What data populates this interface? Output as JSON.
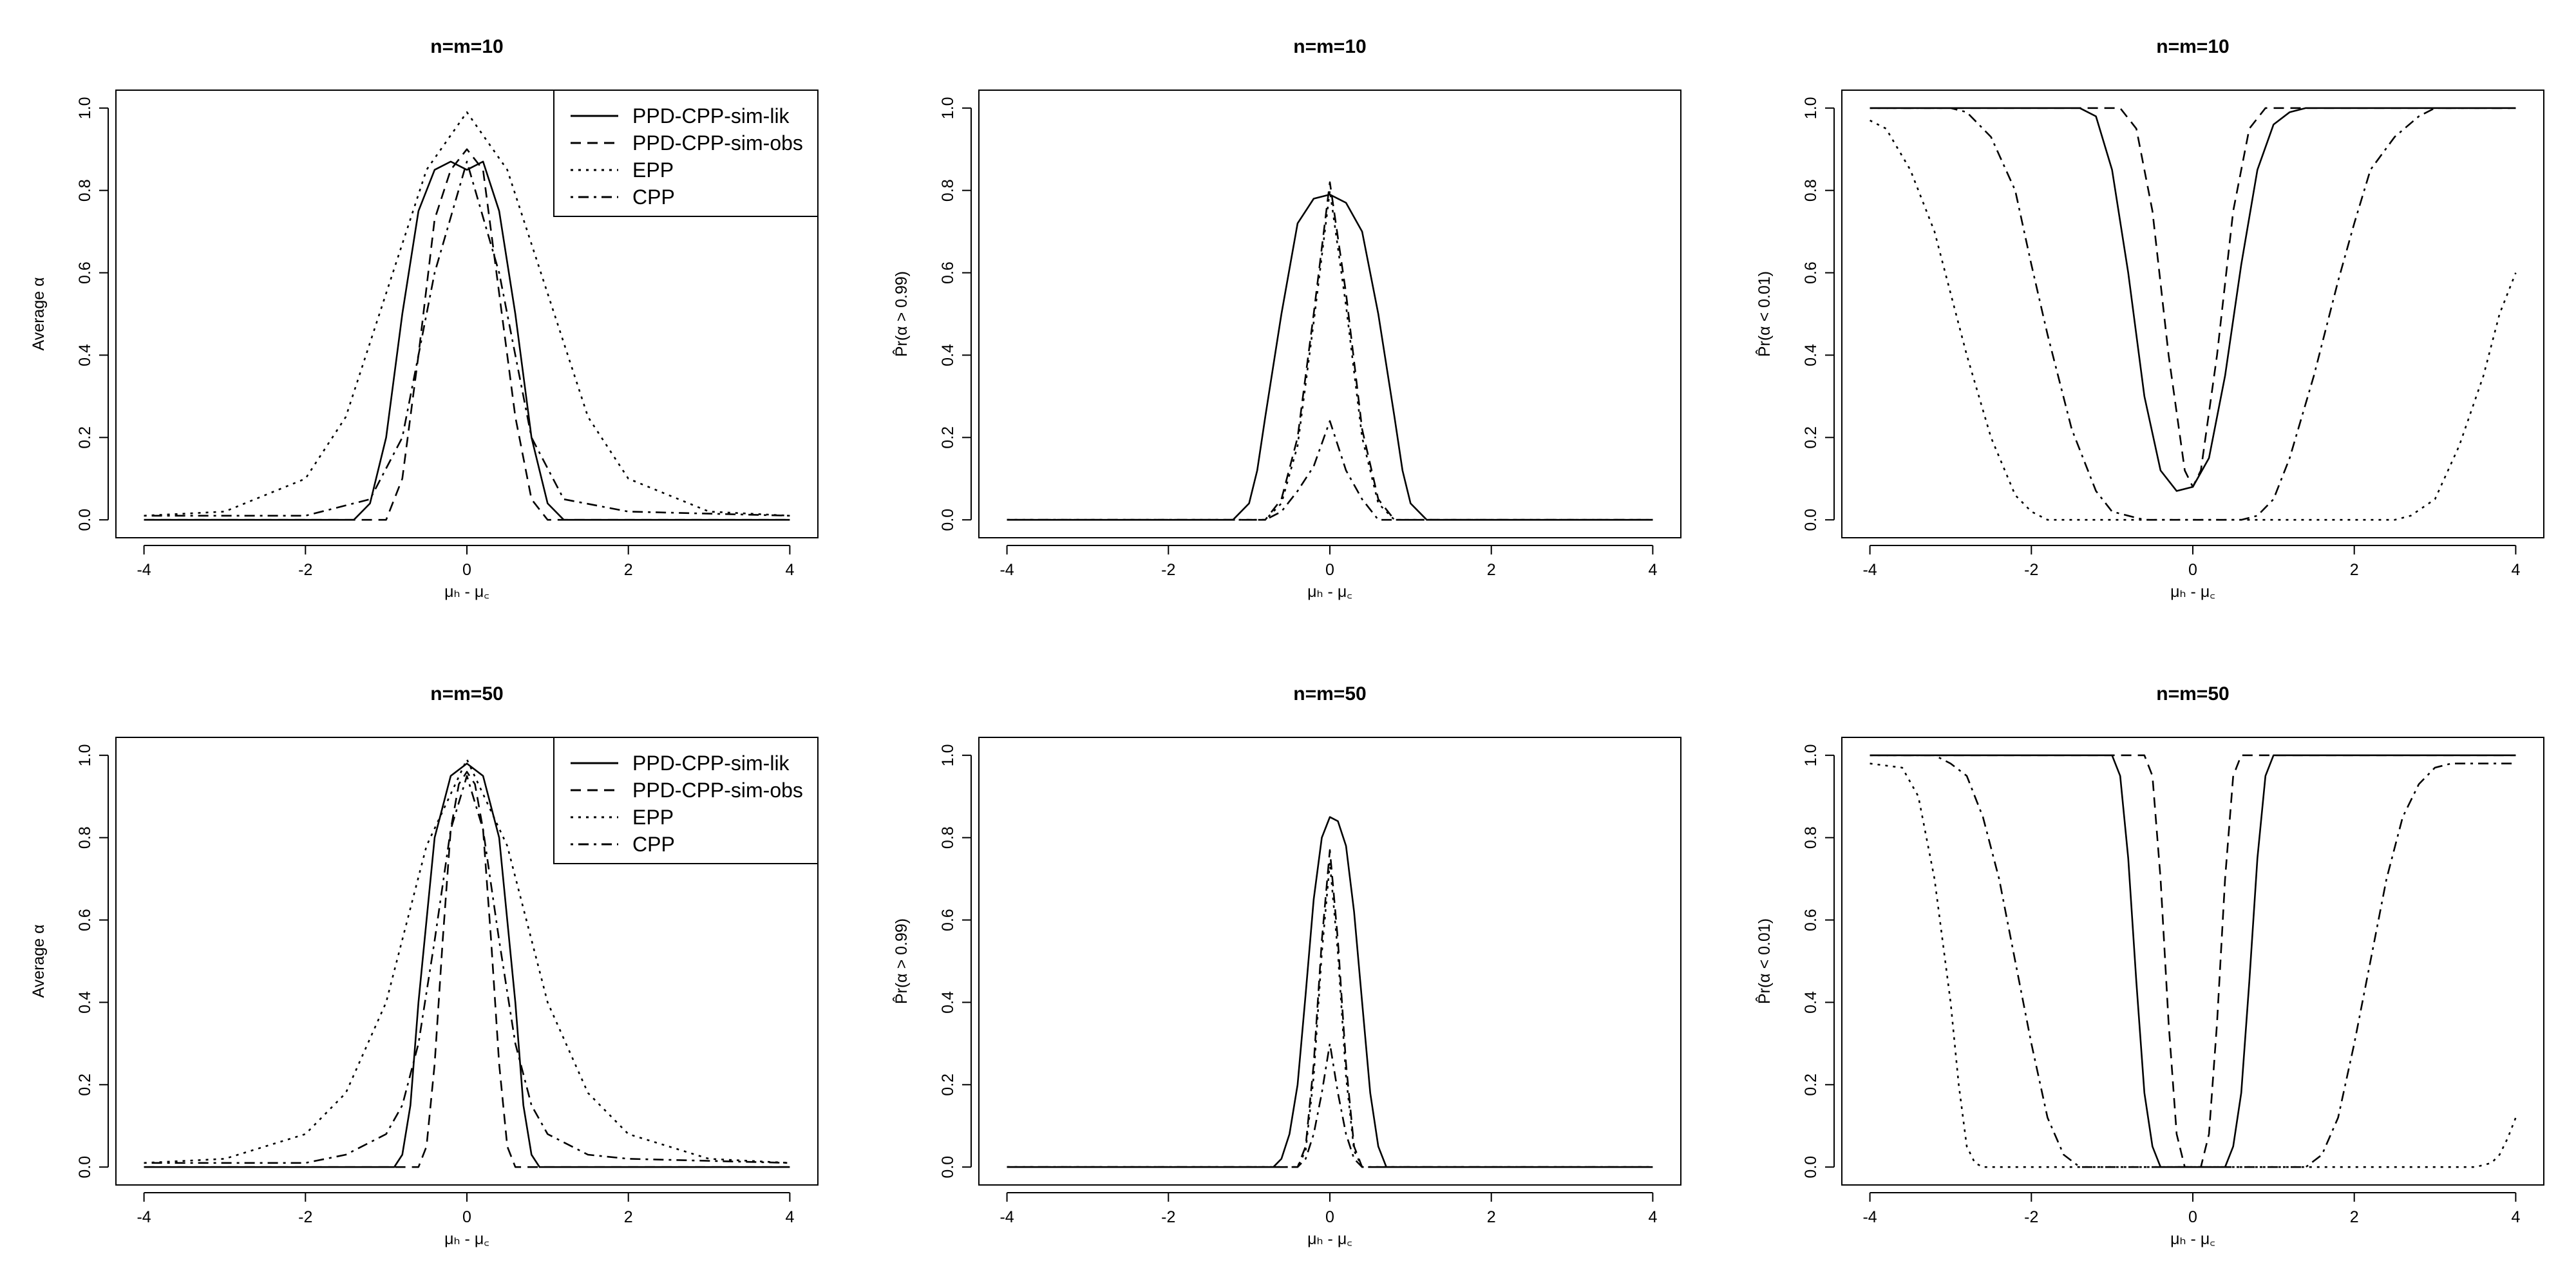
{
  "chart_data": [
    {
      "id": "p1",
      "type": "line",
      "title": "n=m=10",
      "ylabel": "Average α",
      "xlabel": "μₕ - μ꜀",
      "xlim": [
        -4,
        4
      ],
      "ylim": [
        0,
        1
      ],
      "xticks": [
        -4,
        -2,
        0,
        2,
        4
      ],
      "yticks": [
        0.0,
        0.2,
        0.4,
        0.6,
        0.8,
        1.0
      ],
      "legend": [
        "PPD-CPP-sim-lik",
        "PPD-CPP-sim-obs",
        "EPP",
        "CPP"
      ],
      "legend_position": "top-right",
      "series": [
        {
          "name": "PPD-CPP-sim-lik",
          "dash": "solid",
          "x": [
            -4,
            -1.4,
            -1.2,
            -1.0,
            -0.8,
            -0.6,
            -0.4,
            -0.2,
            0,
            0.2,
            0.4,
            0.6,
            0.8,
            1.0,
            1.2,
            1.4,
            4
          ],
          "y": [
            0,
            0,
            0.04,
            0.2,
            0.5,
            0.75,
            0.85,
            0.87,
            0.85,
            0.87,
            0.75,
            0.5,
            0.2,
            0.04,
            0,
            0,
            0
          ]
        },
        {
          "name": "PPD-CPP-sim-obs",
          "dash": "dash",
          "x": [
            -4,
            -1.0,
            -0.8,
            -0.6,
            -0.4,
            -0.2,
            0,
            0.2,
            0.4,
            0.6,
            0.8,
            1.0,
            4
          ],
          "y": [
            0,
            0,
            0.1,
            0.4,
            0.73,
            0.85,
            0.9,
            0.85,
            0.55,
            0.25,
            0.05,
            0,
            0
          ]
        },
        {
          "name": "EPP",
          "dash": "dot",
          "x": [
            -4,
            -3,
            -2,
            -1.5,
            -1.0,
            -0.5,
            0,
            0.5,
            1.0,
            1.5,
            2,
            3,
            4
          ],
          "y": [
            0.01,
            0.02,
            0.1,
            0.25,
            0.55,
            0.85,
            0.99,
            0.85,
            0.55,
            0.25,
            0.1,
            0.02,
            0.01
          ]
        },
        {
          "name": "CPP",
          "dash": "dashdot",
          "x": [
            -4,
            -2,
            -1.2,
            -0.8,
            -0.4,
            0,
            0.4,
            0.8,
            1.2,
            2,
            4
          ],
          "y": [
            0.01,
            0.01,
            0.05,
            0.2,
            0.6,
            0.87,
            0.6,
            0.2,
            0.05,
            0.02,
            0.01
          ]
        }
      ]
    },
    {
      "id": "p2",
      "type": "line",
      "title": "n=m=10",
      "ylabel": "P̂r(α > 0.99)",
      "xlabel": "μₕ - μ꜀",
      "xlim": [
        -4,
        4
      ],
      "ylim": [
        0,
        1
      ],
      "xticks": [
        -4,
        -2,
        0,
        2,
        4
      ],
      "yticks": [
        0.0,
        0.2,
        0.4,
        0.6,
        0.8,
        1.0
      ],
      "series": [
        {
          "name": "PPD-CPP-sim-lik",
          "dash": "solid",
          "x": [
            -4,
            -1.2,
            -1.0,
            -0.9,
            -0.8,
            -0.6,
            -0.4,
            -0.2,
            0,
            0.2,
            0.4,
            0.6,
            0.8,
            0.9,
            1.0,
            1.2,
            4
          ],
          "y": [
            0,
            0,
            0.04,
            0.12,
            0.25,
            0.5,
            0.72,
            0.78,
            0.79,
            0.77,
            0.7,
            0.5,
            0.25,
            0.12,
            0.04,
            0,
            0
          ]
        },
        {
          "name": "PPD-CPP-sim-obs",
          "dash": "dash",
          "x": [
            -4,
            -0.8,
            -0.6,
            -0.4,
            -0.2,
            0,
            0.2,
            0.4,
            0.6,
            0.8,
            4
          ],
          "y": [
            0,
            0,
            0.05,
            0.2,
            0.5,
            0.82,
            0.55,
            0.22,
            0.05,
            0,
            0
          ]
        },
        {
          "name": "EPP",
          "dash": "dot",
          "x": [
            -4,
            -0.8,
            -0.6,
            -0.4,
            -0.2,
            0,
            0.2,
            0.4,
            0.6,
            0.8,
            4
          ],
          "y": [
            0,
            0,
            0.04,
            0.18,
            0.48,
            0.8,
            0.52,
            0.2,
            0.04,
            0,
            0
          ]
        },
        {
          "name": "CPP",
          "dash": "dashdot",
          "x": [
            -4,
            -0.8,
            -0.6,
            -0.4,
            -0.2,
            0,
            0.2,
            0.4,
            0.6,
            4
          ],
          "y": [
            0,
            0,
            0.02,
            0.07,
            0.13,
            0.24,
            0.12,
            0.05,
            0,
            0
          ]
        }
      ]
    },
    {
      "id": "p3",
      "type": "line",
      "title": "n=m=10",
      "ylabel": "P̂r(α < 0.01)",
      "xlabel": "μₕ - μ꜀",
      "xlim": [
        -4,
        4
      ],
      "ylim": [
        0,
        1
      ],
      "xticks": [
        -4,
        -2,
        0,
        2,
        4
      ],
      "yticks": [
        0.0,
        0.2,
        0.4,
        0.6,
        0.8,
        1.0
      ],
      "series": [
        {
          "name": "PPD-CPP-sim-lik",
          "dash": "solid",
          "x": [
            -4,
            -1.4,
            -1.2,
            -1.0,
            -0.8,
            -0.6,
            -0.4,
            -0.2,
            0,
            0.2,
            0.4,
            0.6,
            0.8,
            1.0,
            1.2,
            1.4,
            4
          ],
          "y": [
            1,
            1,
            0.98,
            0.85,
            0.6,
            0.3,
            0.12,
            0.07,
            0.08,
            0.15,
            0.35,
            0.62,
            0.85,
            0.96,
            0.99,
            1,
            1
          ]
        },
        {
          "name": "PPD-CPP-sim-obs",
          "dash": "dash",
          "x": [
            -4,
            -0.9,
            -0.7,
            -0.5,
            -0.3,
            -0.1,
            0,
            0.1,
            0.3,
            0.5,
            0.7,
            0.9,
            4
          ],
          "y": [
            1,
            1,
            0.95,
            0.75,
            0.4,
            0.12,
            0.08,
            0.12,
            0.4,
            0.75,
            0.95,
            1,
            1
          ]
        },
        {
          "name": "EPP",
          "dash": "dot",
          "x": [
            -4,
            -3.8,
            -3.5,
            -3.2,
            -3.0,
            -2.8,
            -2.5,
            -2.2,
            -2.0,
            -1.8,
            2.5,
            2.7,
            3.0,
            3.3,
            3.6,
            3.8,
            4
          ],
          "y": [
            0.97,
            0.95,
            0.85,
            0.7,
            0.55,
            0.4,
            0.2,
            0.06,
            0.02,
            0,
            0,
            0.01,
            0.05,
            0.18,
            0.35,
            0.5,
            0.6
          ]
        },
        {
          "name": "CPP",
          "dash": "dashdot",
          "x": [
            -4,
            -3,
            -2.8,
            -2.5,
            -2.2,
            -2.0,
            -1.8,
            -1.5,
            -1.2,
            -1.0,
            -0.6,
            0.6,
            0.8,
            1.0,
            1.2,
            1.5,
            1.8,
            2.0,
            2.2,
            2.5,
            2.8,
            3.0,
            4
          ],
          "y": [
            1,
            1,
            0.99,
            0.93,
            0.8,
            0.62,
            0.45,
            0.22,
            0.07,
            0.02,
            0,
            0,
            0.01,
            0.05,
            0.15,
            0.35,
            0.58,
            0.72,
            0.85,
            0.93,
            0.98,
            1,
            1
          ]
        }
      ]
    },
    {
      "id": "p4",
      "type": "line",
      "title": "n=m=50",
      "ylabel": "Average α",
      "xlabel": "μₕ - μ꜀",
      "xlim": [
        -4,
        4
      ],
      "ylim": [
        0,
        1
      ],
      "xticks": [
        -4,
        -2,
        0,
        2,
        4
      ],
      "yticks": [
        0.0,
        0.2,
        0.4,
        0.6,
        0.8,
        1.0
      ],
      "legend": [
        "PPD-CPP-sim-lik",
        "PPD-CPP-sim-obs",
        "EPP",
        "CPP"
      ],
      "legend_position": "top-right",
      "series": [
        {
          "name": "PPD-CPP-sim-lik",
          "dash": "solid",
          "x": [
            -4,
            -0.9,
            -0.8,
            -0.7,
            -0.6,
            -0.4,
            -0.2,
            0,
            0.2,
            0.4,
            0.6,
            0.7,
            0.8,
            0.9,
            4
          ],
          "y": [
            0,
            0,
            0.03,
            0.15,
            0.4,
            0.8,
            0.95,
            0.98,
            0.95,
            0.8,
            0.4,
            0.15,
            0.03,
            0,
            0
          ]
        },
        {
          "name": "PPD-CPP-sim-obs",
          "dash": "dash",
          "x": [
            -4,
            -0.6,
            -0.5,
            -0.4,
            -0.3,
            -0.2,
            -0.1,
            0,
            0.1,
            0.2,
            0.3,
            0.4,
            0.5,
            0.6,
            4
          ],
          "y": [
            0,
            0,
            0.05,
            0.25,
            0.55,
            0.82,
            0.93,
            0.96,
            0.93,
            0.82,
            0.55,
            0.25,
            0.05,
            0,
            0
          ]
        },
        {
          "name": "EPP",
          "dash": "dot",
          "x": [
            -4,
            -3,
            -2,
            -1.5,
            -1.0,
            -0.5,
            0,
            0.5,
            1.0,
            1.5,
            2,
            3,
            4
          ],
          "y": [
            0.01,
            0.02,
            0.08,
            0.18,
            0.4,
            0.78,
            0.99,
            0.78,
            0.4,
            0.18,
            0.08,
            0.02,
            0.01
          ]
        },
        {
          "name": "CPP",
          "dash": "dashdot",
          "x": [
            -4,
            -2,
            -1.5,
            -1.0,
            -0.8,
            -0.6,
            -0.4,
            -0.2,
            0,
            0.2,
            0.4,
            0.6,
            0.8,
            1.0,
            1.5,
            2,
            4
          ],
          "y": [
            0.01,
            0.01,
            0.03,
            0.08,
            0.15,
            0.3,
            0.55,
            0.82,
            0.95,
            0.82,
            0.55,
            0.3,
            0.15,
            0.08,
            0.03,
            0.02,
            0.01
          ]
        }
      ]
    },
    {
      "id": "p5",
      "type": "line",
      "title": "n=m=50",
      "ylabel": "P̂r(α > 0.99)",
      "xlabel": "μₕ - μ꜀",
      "xlim": [
        -4,
        4
      ],
      "ylim": [
        0,
        1
      ],
      "xticks": [
        -4,
        -2,
        0,
        2,
        4
      ],
      "yticks": [
        0.0,
        0.2,
        0.4,
        0.6,
        0.8,
        1.0
      ],
      "series": [
        {
          "name": "PPD-CPP-sim-lik",
          "dash": "solid",
          "x": [
            -4,
            -0.7,
            -0.6,
            -0.5,
            -0.4,
            -0.3,
            -0.2,
            -0.1,
            0,
            0.1,
            0.2,
            0.3,
            0.4,
            0.5,
            0.6,
            0.7,
            4
          ],
          "y": [
            0,
            0,
            0.02,
            0.08,
            0.2,
            0.42,
            0.65,
            0.8,
            0.85,
            0.84,
            0.78,
            0.62,
            0.4,
            0.18,
            0.05,
            0,
            0
          ]
        },
        {
          "name": "PPD-CPP-sim-obs",
          "dash": "dash",
          "x": [
            -4,
            -0.4,
            -0.3,
            -0.2,
            -0.1,
            0,
            0.1,
            0.2,
            0.3,
            0.4,
            4
          ],
          "y": [
            0,
            0,
            0.05,
            0.25,
            0.55,
            0.77,
            0.55,
            0.25,
            0.05,
            0,
            0
          ]
        },
        {
          "name": "EPP",
          "dash": "dot",
          "x": [
            -4,
            -0.4,
            -0.3,
            -0.2,
            -0.1,
            0,
            0.1,
            0.2,
            0.3,
            0.4,
            4
          ],
          "y": [
            0,
            0,
            0.04,
            0.22,
            0.52,
            0.74,
            0.52,
            0.22,
            0.04,
            0,
            0
          ]
        },
        {
          "name": "CPP",
          "dash": "dashdot",
          "x": [
            -4,
            -0.4,
            -0.3,
            -0.2,
            -0.1,
            0,
            0.1,
            0.2,
            0.3,
            0.4,
            4
          ],
          "y": [
            0,
            0,
            0.02,
            0.08,
            0.18,
            0.3,
            0.18,
            0.08,
            0.02,
            0,
            0
          ]
        }
      ]
    },
    {
      "id": "p6",
      "type": "line",
      "title": "n=m=50",
      "ylabel": "P̂r(α < 0.01)",
      "xlabel": "μₕ - μ꜀",
      "xlim": [
        -4,
        4
      ],
      "ylim": [
        0,
        1
      ],
      "xticks": [
        -4,
        -2,
        0,
        2,
        4
      ],
      "yticks": [
        0.0,
        0.2,
        0.4,
        0.6,
        0.8,
        1.0
      ],
      "series": [
        {
          "name": "PPD-CPP-sim-lik",
          "dash": "solid",
          "x": [
            -4,
            -1.0,
            -0.9,
            -0.8,
            -0.7,
            -0.6,
            -0.5,
            -0.4,
            0.4,
            0.5,
            0.6,
            0.7,
            0.8,
            0.9,
            1.0,
            4
          ],
          "y": [
            1,
            1,
            0.95,
            0.75,
            0.45,
            0.18,
            0.05,
            0,
            0,
            0.05,
            0.18,
            0.45,
            0.75,
            0.95,
            1,
            1
          ]
        },
        {
          "name": "PPD-CPP-sim-obs",
          "dash": "dash",
          "x": [
            -4,
            -0.6,
            -0.5,
            -0.4,
            -0.3,
            -0.2,
            -0.1,
            0.1,
            0.2,
            0.3,
            0.4,
            0.5,
            0.6,
            4
          ],
          "y": [
            1,
            1,
            0.95,
            0.7,
            0.35,
            0.08,
            0,
            0,
            0.08,
            0.35,
            0.7,
            0.95,
            1,
            1
          ]
        },
        {
          "name": "EPP",
          "dash": "dot",
          "x": [
            -4,
            -3.6,
            -3.4,
            -3.2,
            -3.0,
            -2.9,
            -2.8,
            -2.7,
            -2.6,
            3.5,
            3.7,
            3.8,
            3.9,
            4
          ],
          "y": [
            0.98,
            0.97,
            0.9,
            0.7,
            0.4,
            0.2,
            0.05,
            0.01,
            0,
            0,
            0.01,
            0.03,
            0.07,
            0.12
          ]
        },
        {
          "name": "CPP",
          "dash": "dashdot",
          "x": [
            -4,
            -3.2,
            -3.0,
            -2.8,
            -2.6,
            -2.4,
            -2.2,
            -2.0,
            -1.8,
            -1.6,
            -1.4,
            1.4,
            1.6,
            1.8,
            2.0,
            2.2,
            2.4,
            2.6,
            2.8,
            3.0,
            3.2,
            4
          ],
          "y": [
            1,
            1,
            0.98,
            0.95,
            0.85,
            0.7,
            0.5,
            0.3,
            0.12,
            0.03,
            0,
            0,
            0.03,
            0.12,
            0.3,
            0.5,
            0.7,
            0.85,
            0.93,
            0.97,
            0.98,
            0.98
          ]
        }
      ]
    }
  ]
}
